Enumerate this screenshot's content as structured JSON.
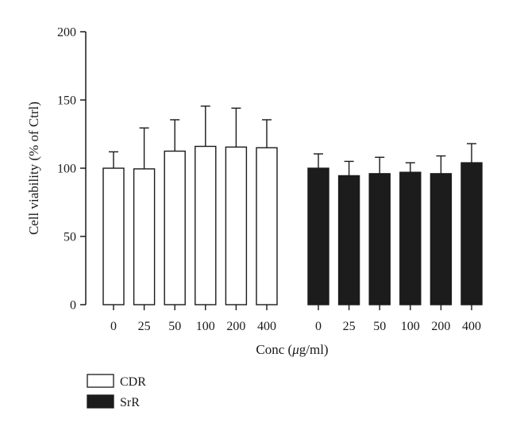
{
  "chart_data": {
    "type": "bar",
    "title": "",
    "xlabel": "Conc (μg/ml)",
    "xlabel_parts": {
      "prefix": "Conc (",
      "mu": "μ",
      "suffix": "g/ml)"
    },
    "ylabel": "Cell viability (% of Ctrl)",
    "ylim": [
      0,
      200
    ],
    "yticks": [
      0,
      50,
      100,
      150,
      200
    ],
    "categories": [
      "0",
      "25",
      "50",
      "100",
      "200",
      "400"
    ],
    "grid": false,
    "legend_position": "bottom-left",
    "series": [
      {
        "name": "CDR",
        "fill": "#ffffff",
        "categories": [
          "0",
          "25",
          "50",
          "100",
          "200",
          "400"
        ],
        "values": [
          100,
          99.5,
          112.5,
          116,
          115.5,
          115
        ],
        "errors": [
          12,
          30,
          23,
          29.5,
          28.5,
          20.5
        ]
      },
      {
        "name": "SrR",
        "fill": "#1c1c1c",
        "categories": [
          "0",
          "25",
          "50",
          "100",
          "200",
          "400"
        ],
        "values": [
          100,
          94.5,
          96,
          97,
          96,
          104
        ],
        "errors": [
          10.5,
          10.5,
          12,
          7,
          13,
          14
        ]
      }
    ]
  }
}
